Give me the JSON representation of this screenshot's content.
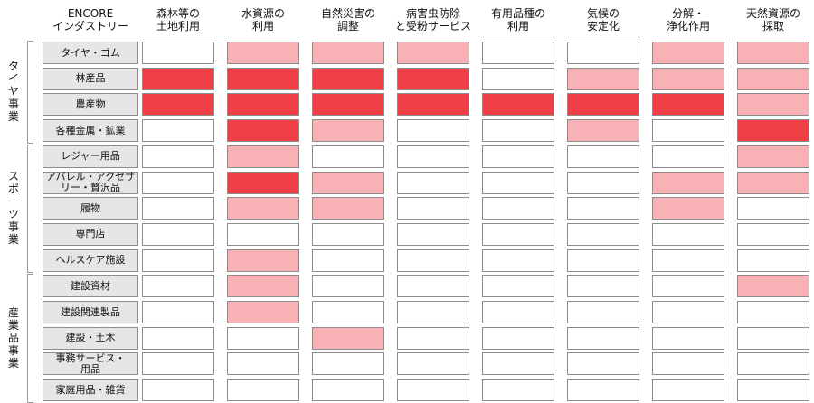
{
  "corner_header": "ENCORE\nインダストリー",
  "services": [
    "森林等の\n土地利用",
    "水資源の\n利用",
    "自然災害の\n調整",
    "病害虫防除\nと受粉サービス",
    "有用品種の\n利用",
    "気候の\n安定化",
    "分解・\n浄化作用",
    "天然資源の\n採取"
  ],
  "segments": [
    {
      "name": "タイヤ事業",
      "rows": 4
    },
    {
      "name": "スポーツ事業",
      "rows": 5
    },
    {
      "name": "産業品事業",
      "rows": 5
    }
  ],
  "industries": [
    {
      "name": "タイヤ・ゴム",
      "levels": [
        0,
        1,
        1,
        1,
        0,
        0,
        1,
        1
      ]
    },
    {
      "name": "林産品",
      "levels": [
        2,
        2,
        2,
        2,
        0,
        1,
        1,
        1
      ]
    },
    {
      "name": "農産物",
      "levels": [
        2,
        2,
        2,
        2,
        2,
        2,
        2,
        1
      ]
    },
    {
      "name": "各種金属・鉱業",
      "levels": [
        0,
        2,
        1,
        0,
        0,
        1,
        0,
        2
      ]
    },
    {
      "name": "レジャー用品",
      "levels": [
        0,
        1,
        0,
        0,
        0,
        0,
        0,
        1
      ]
    },
    {
      "name": "アパレル・アクセサ\nリー・贅沢品",
      "levels": [
        0,
        2,
        1,
        0,
        0,
        0,
        1,
        1
      ]
    },
    {
      "name": "履物",
      "levels": [
        0,
        1,
        1,
        0,
        0,
        0,
        1,
        0
      ]
    },
    {
      "name": "専門店",
      "levels": [
        0,
        0,
        0,
        0,
        0,
        0,
        0,
        0
      ]
    },
    {
      "name": "ヘルスケア施設",
      "levels": [
        0,
        1,
        0,
        0,
        0,
        0,
        0,
        0
      ]
    },
    {
      "name": "建設資材",
      "levels": [
        0,
        1,
        0,
        0,
        0,
        0,
        0,
        1
      ]
    },
    {
      "name": "建設関連製品",
      "levels": [
        0,
        1,
        0,
        0,
        0,
        0,
        0,
        0
      ]
    },
    {
      "name": "建設・土木",
      "levels": [
        0,
        0,
        1,
        0,
        0,
        0,
        0,
        0
      ]
    },
    {
      "name": "事務サービス・\n用品",
      "levels": [
        0,
        0,
        0,
        0,
        0,
        0,
        0,
        0
      ]
    },
    {
      "name": "家庭用品・雑貨",
      "levels": [
        0,
        0,
        0,
        0,
        0,
        0,
        0,
        0
      ]
    }
  ],
  "level_colors": [
    "#ffffff",
    "#f8b1b5",
    "#f04047"
  ]
}
